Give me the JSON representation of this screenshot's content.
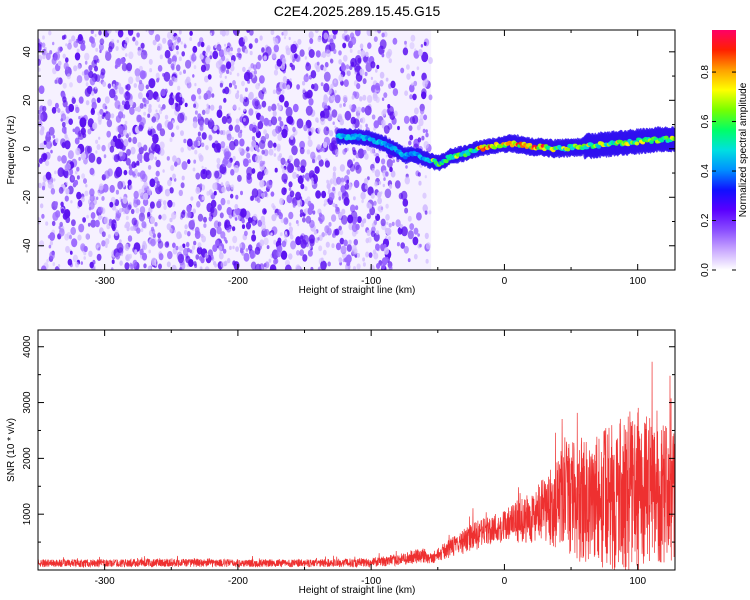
{
  "title": "C2E4.2025.289.15.45.G15",
  "chart_data": [
    {
      "type": "heatmap",
      "xlabel": "Height of straight line (km)",
      "ylabel": "Frequency (Hz)",
      "xlim": [
        -350,
        128
      ],
      "ylim": [
        -50,
        49
      ],
      "xticks": [
        -300,
        -200,
        -100,
        0,
        100
      ],
      "yticks": [
        -40,
        -20,
        0,
        20,
        40
      ],
      "noise_region_x": [
        -350,
        -55
      ],
      "ridge": {
        "x": [
          -125,
          -110,
          -100,
          -90,
          -80,
          -75,
          -70,
          -60,
          -55,
          -50,
          -45,
          -40,
          -30,
          -20,
          -10,
          0,
          10,
          20,
          40,
          60,
          80,
          100,
          120,
          128
        ],
        "y": [
          5,
          5,
          4,
          2,
          -1,
          -3,
          -2,
          -4,
          -5,
          -6,
          -5,
          -3,
          -2,
          0,
          1,
          2,
          2,
          1,
          0,
          1,
          2,
          3,
          4,
          4
        ]
      },
      "colorbar": {
        "label": "Normalized spectral amplitude",
        "ticks": [
          0.0,
          0.2,
          0.4,
          0.6,
          0.8
        ],
        "tick_labels": [
          "0.0",
          "0.2",
          "0.4",
          "0.6",
          "0.8"
        ],
        "range": [
          0,
          0.97
        ],
        "colors": [
          "#ffffff",
          "#c9a8ff",
          "#8a4dff",
          "#5a00ff",
          "#1010ff",
          "#0090ff",
          "#00e0e0",
          "#00ff66",
          "#77ff00",
          "#ffff00",
          "#ffa000",
          "#ff2000",
          "#ff0066"
        ]
      }
    },
    {
      "type": "line",
      "xlabel": "Height of straight line (km)",
      "ylabel": "SNR (10 * v/v)",
      "xlim": [
        -350,
        128
      ],
      "ylim": [
        0,
        4300
      ],
      "xticks": [
        -300,
        -200,
        -100,
        0,
        100
      ],
      "yticks": [
        1000,
        2000,
        3000,
        4000
      ],
      "color": "#ee3030",
      "envelope": {
        "x": [
          -350,
          -300,
          -250,
          -200,
          -150,
          -100,
          -80,
          -60,
          -55,
          -40,
          -25,
          -10,
          0,
          20,
          35,
          45,
          60,
          80,
          100,
          110,
          128
        ],
        "base": [
          100,
          100,
          110,
          100,
          100,
          110,
          150,
          220,
          180,
          350,
          500,
          650,
          700,
          800,
          900,
          1000,
          900,
          900,
          1000,
          1000,
          1000
        ],
        "amp": [
          140,
          140,
          150,
          140,
          140,
          160,
          200,
          300,
          200,
          350,
          500,
          550,
          600,
          900,
          1400,
          1900,
          2300,
          2600,
          3000,
          2600,
          2400
        ]
      }
    }
  ]
}
